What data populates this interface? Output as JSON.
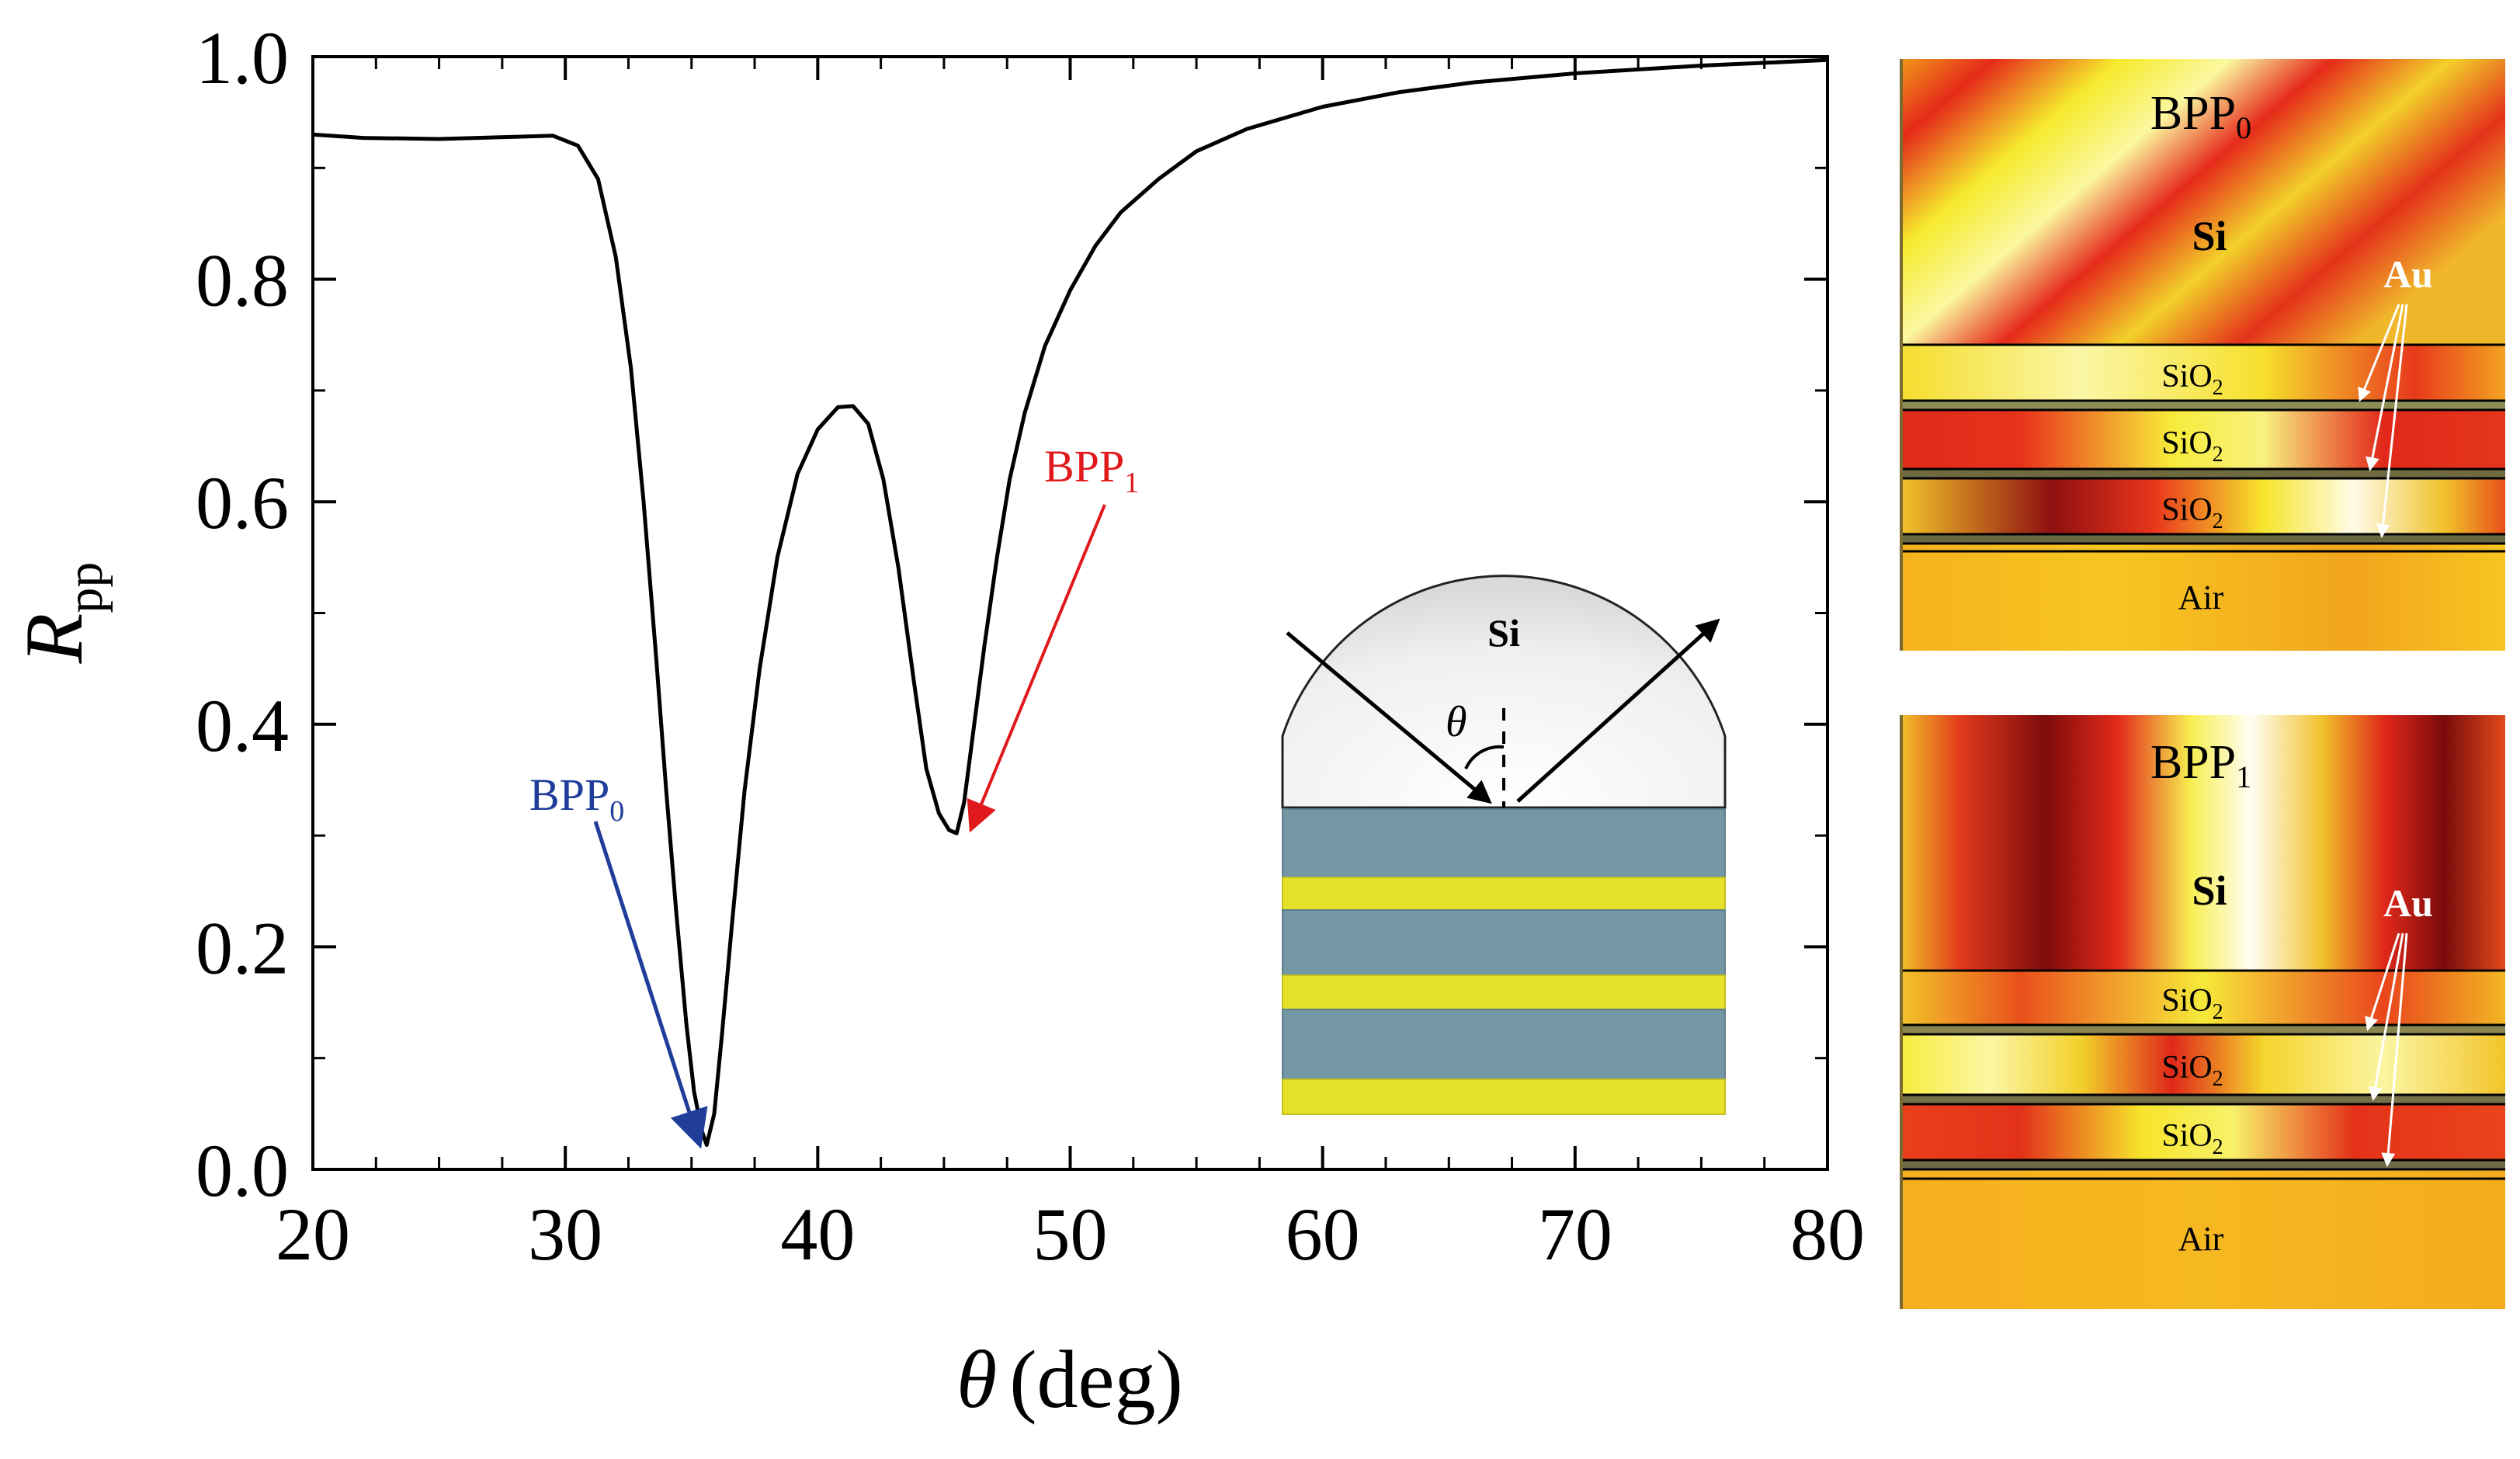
{
  "chart_data": {
    "type": "line",
    "title": "",
    "xlabel": "θ (deg)",
    "xlabel_symbol": "θ",
    "xlabel_unit": "(deg)",
    "ylabel": "R_pp",
    "ylabel_symbol": "R",
    "ylabel_sub": "pp",
    "xlim": [
      20,
      80
    ],
    "ylim": [
      0.0,
      1.0
    ],
    "xticks": [
      20,
      30,
      40,
      50,
      60,
      70,
      80
    ],
    "yticks": [
      "0.0",
      "0.2",
      "0.4",
      "0.6",
      "0.8",
      "1.0"
    ],
    "grid": false,
    "series": [
      {
        "name": "R_pp",
        "color": "#000000",
        "x": [
          20,
          22,
          25,
          28,
          29.5,
          30.5,
          31.3,
          32.0,
          32.6,
          33.1,
          33.6,
          34.0,
          34.4,
          34.8,
          35.1,
          35.4,
          35.6,
          35.9,
          36.2,
          36.6,
          37.1,
          37.7,
          38.4,
          39.2,
          40.0,
          40.8,
          41.4,
          42.0,
          42.6,
          43.2,
          43.8,
          44.3,
          44.8,
          45.2,
          45.5,
          45.8,
          46.2,
          46.6,
          47.1,
          47.6,
          48.2,
          49.0,
          50.0,
          51.0,
          52.0,
          53.5,
          55.0,
          57.0,
          60.0,
          63.0,
          66.0,
          70.0,
          75.0,
          80.0
        ],
        "y": [
          0.93,
          0.927,
          0.926,
          0.928,
          0.929,
          0.92,
          0.89,
          0.82,
          0.72,
          0.6,
          0.46,
          0.34,
          0.23,
          0.13,
          0.07,
          0.035,
          0.022,
          0.05,
          0.12,
          0.22,
          0.34,
          0.45,
          0.55,
          0.625,
          0.665,
          0.685,
          0.686,
          0.67,
          0.62,
          0.54,
          0.44,
          0.36,
          0.32,
          0.305,
          0.302,
          0.33,
          0.4,
          0.47,
          0.55,
          0.62,
          0.68,
          0.74,
          0.79,
          0.83,
          0.86,
          0.89,
          0.915,
          0.935,
          0.955,
          0.968,
          0.977,
          0.985,
          0.992,
          0.997
        ]
      }
    ],
    "annotations": [
      {
        "label": "BPP",
        "sub": "0",
        "color": "#1f3d99",
        "target_x": 35.6,
        "target_y": 0.022
      },
      {
        "label": "BPP",
        "sub": "1",
        "color": "#e0191c",
        "target_x": 45.5,
        "target_y": 0.302
      }
    ]
  },
  "inset": {
    "prism_label": "Si",
    "angle_label": "θ",
    "colors": {
      "prism": "#efefef",
      "dielectric": "#7397a4",
      "metal": "#e6e22a"
    }
  },
  "field_maps": [
    {
      "mode": "BPP",
      "mode_sub": "0",
      "top_label": "Si",
      "metal_label": "Au",
      "layers": [
        {
          "main": "SiO",
          "sub": "2"
        },
        {
          "main": "SiO",
          "sub": "2"
        },
        {
          "main": "SiO",
          "sub": "2"
        }
      ],
      "bottom_label": "Air"
    },
    {
      "mode": "BPP",
      "mode_sub": "1",
      "top_label": "Si",
      "metal_label": "Au",
      "layers": [
        {
          "main": "SiO",
          "sub": "2"
        },
        {
          "main": "SiO",
          "sub": "2"
        },
        {
          "main": "SiO",
          "sub": "2"
        }
      ],
      "bottom_label": "Air"
    }
  ],
  "colors": {
    "axis": "#000000",
    "bpp0": "#1f3d99",
    "bpp1": "#e0191c",
    "au_label": "#ffffff"
  }
}
